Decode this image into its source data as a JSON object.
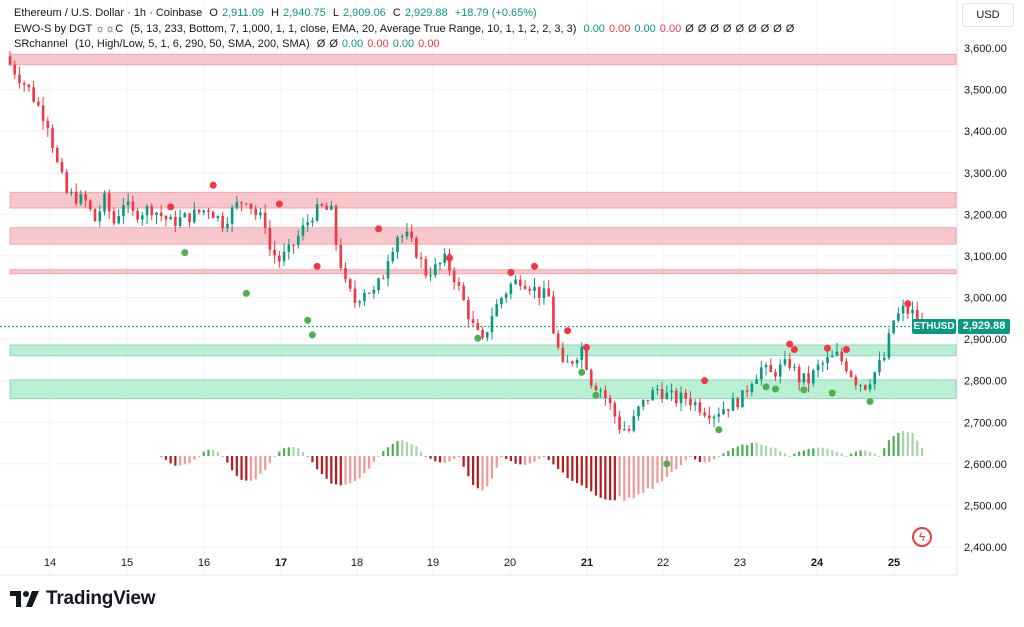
{
  "legend": {
    "line1": {
      "symbol": "Ethereum / U.S. Dollar · 1h · Coinbase",
      "o_label": "O",
      "o_value": "2,911.09",
      "h_label": "H",
      "h_value": "2,940.75",
      "l_label": "L",
      "l_value": "2,909.06",
      "c_label": "C",
      "c_value": "2,929.88",
      "change": "+18.79 (+0.65%)"
    },
    "line2": {
      "name": "EWO-S by DGT ☼☼C",
      "params": "(5, 13, 233, Bottom, 7, 1,000, 1, 1, close, EMA, 20, Average True Range, 10, 1, 1, 2, 2, 3, 3)",
      "values": [
        "0.00",
        "0.00",
        "0.00",
        "0.00",
        "Ø",
        "Ø",
        "Ø",
        "Ø",
        "Ø",
        "Ø",
        "Ø",
        "Ø",
        "Ø"
      ]
    },
    "line3": {
      "name": "SRchannel",
      "params": "(10, High/Low, 5, 1, 6, 290, 50, SMA, 200, SMA)",
      "values": [
        "Ø",
        "Ø",
        "0.00",
        "0.00",
        "0.00",
        "0.00"
      ]
    }
  },
  "currency": "USD",
  "price_tag": {
    "symbol": "ETHUSD",
    "value": "2,929.88"
  },
  "brand": "TradingView",
  "colors": {
    "up": "#089981",
    "down": "#f23645",
    "resistance_zone": "#f7c7cc",
    "support_zone": "#b9f0d1"
  },
  "chart_data": {
    "type": "candlestick",
    "title": "Ethereum / U.S. Dollar · 1h · Coinbase",
    "ylim": [
      2400,
      3600
    ],
    "y_ticks": [
      {
        "value": 3600,
        "label": "3,600.00"
      },
      {
        "value": 3500,
        "label": "3,500.00"
      },
      {
        "value": 3400,
        "label": "3,400.00"
      },
      {
        "value": 3300,
        "label": "3,300.00"
      },
      {
        "value": 3200,
        "label": "3,200.00"
      },
      {
        "value": 3100,
        "label": "3,100.00"
      },
      {
        "value": 3000,
        "label": "3,000.00"
      },
      {
        "value": 2900,
        "label": "2,900.00"
      },
      {
        "value": 2800,
        "label": "2,800.00"
      },
      {
        "value": 2700,
        "label": "2,700.00"
      },
      {
        "value": 2600,
        "label": "2,600.00"
      },
      {
        "value": 2500,
        "label": "2,500.00"
      },
      {
        "value": 2400,
        "label": "2,400.00"
      }
    ],
    "x_ticks": [
      "14",
      "15",
      "16",
      "17",
      "18",
      "19",
      "20",
      "21",
      "22",
      "23",
      "24",
      "25"
    ],
    "bold_x_ticks": [
      "17",
      "21",
      "24",
      "25"
    ],
    "last_price": 2929.88,
    "zones": [
      {
        "kind": "resistance",
        "from": 3560,
        "to": 3585
      },
      {
        "kind": "resistance",
        "from": 3215,
        "to": 3253
      },
      {
        "kind": "resistance",
        "from": 3128,
        "to": 3168
      },
      {
        "kind": "resistance",
        "from": 3057,
        "to": 3067
      },
      {
        "kind": "support",
        "from": 2860,
        "to": 2886
      },
      {
        "kind": "support",
        "from": 2757,
        "to": 2802
      }
    ],
    "path": [
      [
        0,
        3560
      ],
      [
        4,
        3500
      ],
      [
        8,
        3420
      ],
      [
        10,
        3320
      ],
      [
        12,
        3250
      ],
      [
        16,
        3230
      ],
      [
        18,
        3185
      ],
      [
        20,
        3235
      ],
      [
        22,
        3180
      ],
      [
        24,
        3230
      ],
      [
        26,
        3200
      ],
      [
        30,
        3215
      ],
      [
        34,
        3180
      ],
      [
        38,
        3195
      ],
      [
        42,
        3215
      ],
      [
        45,
        3180
      ],
      [
        48,
        3222
      ],
      [
        50,
        3240
      ],
      [
        52,
        3200
      ],
      [
        54,
        3180
      ],
      [
        55,
        3115
      ],
      [
        57,
        3090
      ],
      [
        59,
        3110
      ],
      [
        62,
        3165
      ],
      [
        64,
        3200
      ],
      [
        66,
        3215
      ],
      [
        68,
        3205
      ],
      [
        69,
        3130
      ],
      [
        71,
        3030
      ],
      [
        73,
        2990
      ],
      [
        75,
        3020
      ],
      [
        77,
        3010
      ],
      [
        79,
        3055
      ],
      [
        80,
        3100
      ],
      [
        82,
        3150
      ],
      [
        84,
        3145
      ],
      [
        86,
        3110
      ],
      [
        88,
        3060
      ],
      [
        90,
        3070
      ],
      [
        92,
        3090
      ],
      [
        94,
        3050
      ],
      [
        96,
        2990
      ],
      [
        98,
        2930
      ],
      [
        100,
        2890
      ],
      [
        102,
        2960
      ],
      [
        104,
        3000
      ],
      [
        106,
        3030
      ],
      [
        108,
        3045
      ],
      [
        110,
        3030
      ],
      [
        112,
        3010
      ],
      [
        114,
        3000
      ],
      [
        115,
        2920
      ],
      [
        117,
        2830
      ],
      [
        119,
        2850
      ],
      [
        121,
        2880
      ],
      [
        123,
        2800
      ],
      [
        125,
        2780
      ],
      [
        127,
        2740
      ],
      [
        129,
        2690
      ],
      [
        131,
        2680
      ],
      [
        133,
        2730
      ],
      [
        135,
        2760
      ],
      [
        137,
        2780
      ],
      [
        139,
        2765
      ],
      [
        141,
        2755
      ],
      [
        143,
        2760
      ],
      [
        145,
        2745
      ],
      [
        147,
        2730
      ],
      [
        149,
        2722
      ],
      [
        151,
        2735
      ],
      [
        153,
        2745
      ],
      [
        155,
        2760
      ],
      [
        157,
        2805
      ],
      [
        159,
        2830
      ],
      [
        161,
        2815
      ],
      [
        163,
        2830
      ],
      [
        165,
        2842
      ],
      [
        167,
        2805
      ],
      [
        169,
        2800
      ],
      [
        171,
        2832
      ],
      [
        173,
        2848
      ],
      [
        175,
        2860
      ],
      [
        177,
        2835
      ],
      [
        179,
        2800
      ],
      [
        181,
        2790
      ],
      [
        183,
        2820
      ],
      [
        185,
        2855
      ],
      [
        187,
        2945
      ],
      [
        189,
        2970
      ],
      [
        191,
        2962
      ],
      [
        193,
        2930
      ]
    ],
    "dn_markers": [
      {
        "i": 34,
        "y": 3218
      },
      {
        "i": 43,
        "y": 3270
      },
      {
        "i": 57,
        "y": 3225
      },
      {
        "i": 65,
        "y": 3075
      },
      {
        "i": 78,
        "y": 3165
      },
      {
        "i": 93,
        "y": 3095
      },
      {
        "i": 106,
        "y": 3060
      },
      {
        "i": 111,
        "y": 3075
      },
      {
        "i": 118,
        "y": 2920
      },
      {
        "i": 122,
        "y": 2880
      },
      {
        "i": 147,
        "y": 2800
      },
      {
        "i": 165,
        "y": 2888
      },
      {
        "i": 166,
        "y": 2875
      },
      {
        "i": 173,
        "y": 2878
      },
      {
        "i": 177,
        "y": 2875
      },
      {
        "i": 190,
        "y": 2985
      }
    ],
    "up_markers": [
      {
        "i": 37,
        "y": 3108
      },
      {
        "i": 50,
        "y": 3010
      },
      {
        "i": 63,
        "y": 2945
      },
      {
        "i": 64,
        "y": 2910
      },
      {
        "i": 99,
        "y": 2902
      },
      {
        "i": 121,
        "y": 2820
      },
      {
        "i": 124,
        "y": 2765
      },
      {
        "i": 150,
        "y": 2682
      },
      {
        "i": 160,
        "y": 2785
      },
      {
        "i": 162,
        "y": 2780
      },
      {
        "i": 168,
        "y": 2778
      },
      {
        "i": 174,
        "y": 2770
      },
      {
        "i": 182,
        "y": 2750
      },
      {
        "i": 139,
        "y": 2600
      }
    ],
    "oscillator_segments": [
      {
        "from": 32,
        "to": 40,
        "peak": 0.35,
        "sign": -1
      },
      {
        "from": 40,
        "to": 45,
        "peak": 0.25,
        "sign": 1
      },
      {
        "from": 45,
        "to": 56,
        "peak": 0.9,
        "sign": -1
      },
      {
        "from": 56,
        "to": 63,
        "peak": 0.35,
        "sign": 1
      },
      {
        "from": 63,
        "to": 78,
        "peak": 1.1,
        "sign": -1
      },
      {
        "from": 78,
        "to": 88,
        "peak": 0.55,
        "sign": 1
      },
      {
        "from": 88,
        "to": 95,
        "peak": 0.25,
        "sign": -1
      },
      {
        "from": 95,
        "to": 104,
        "peak": 1.2,
        "sign": -1
      },
      {
        "from": 104,
        "to": 113,
        "peak": 0.3,
        "sign": -1
      },
      {
        "from": 113,
        "to": 144,
        "peak": 1.55,
        "sign": -1
      },
      {
        "from": 144,
        "to": 150,
        "peak": 0.25,
        "sign": -1
      },
      {
        "from": 150,
        "to": 165,
        "peak": 0.45,
        "sign": 1
      },
      {
        "from": 165,
        "to": 177,
        "peak": 0.3,
        "sign": 1
      },
      {
        "from": 177,
        "to": 184,
        "peak": 0.2,
        "sign": 1
      },
      {
        "from": 184,
        "to": 194,
        "peak": 0.95,
        "sign": 1
      }
    ]
  }
}
